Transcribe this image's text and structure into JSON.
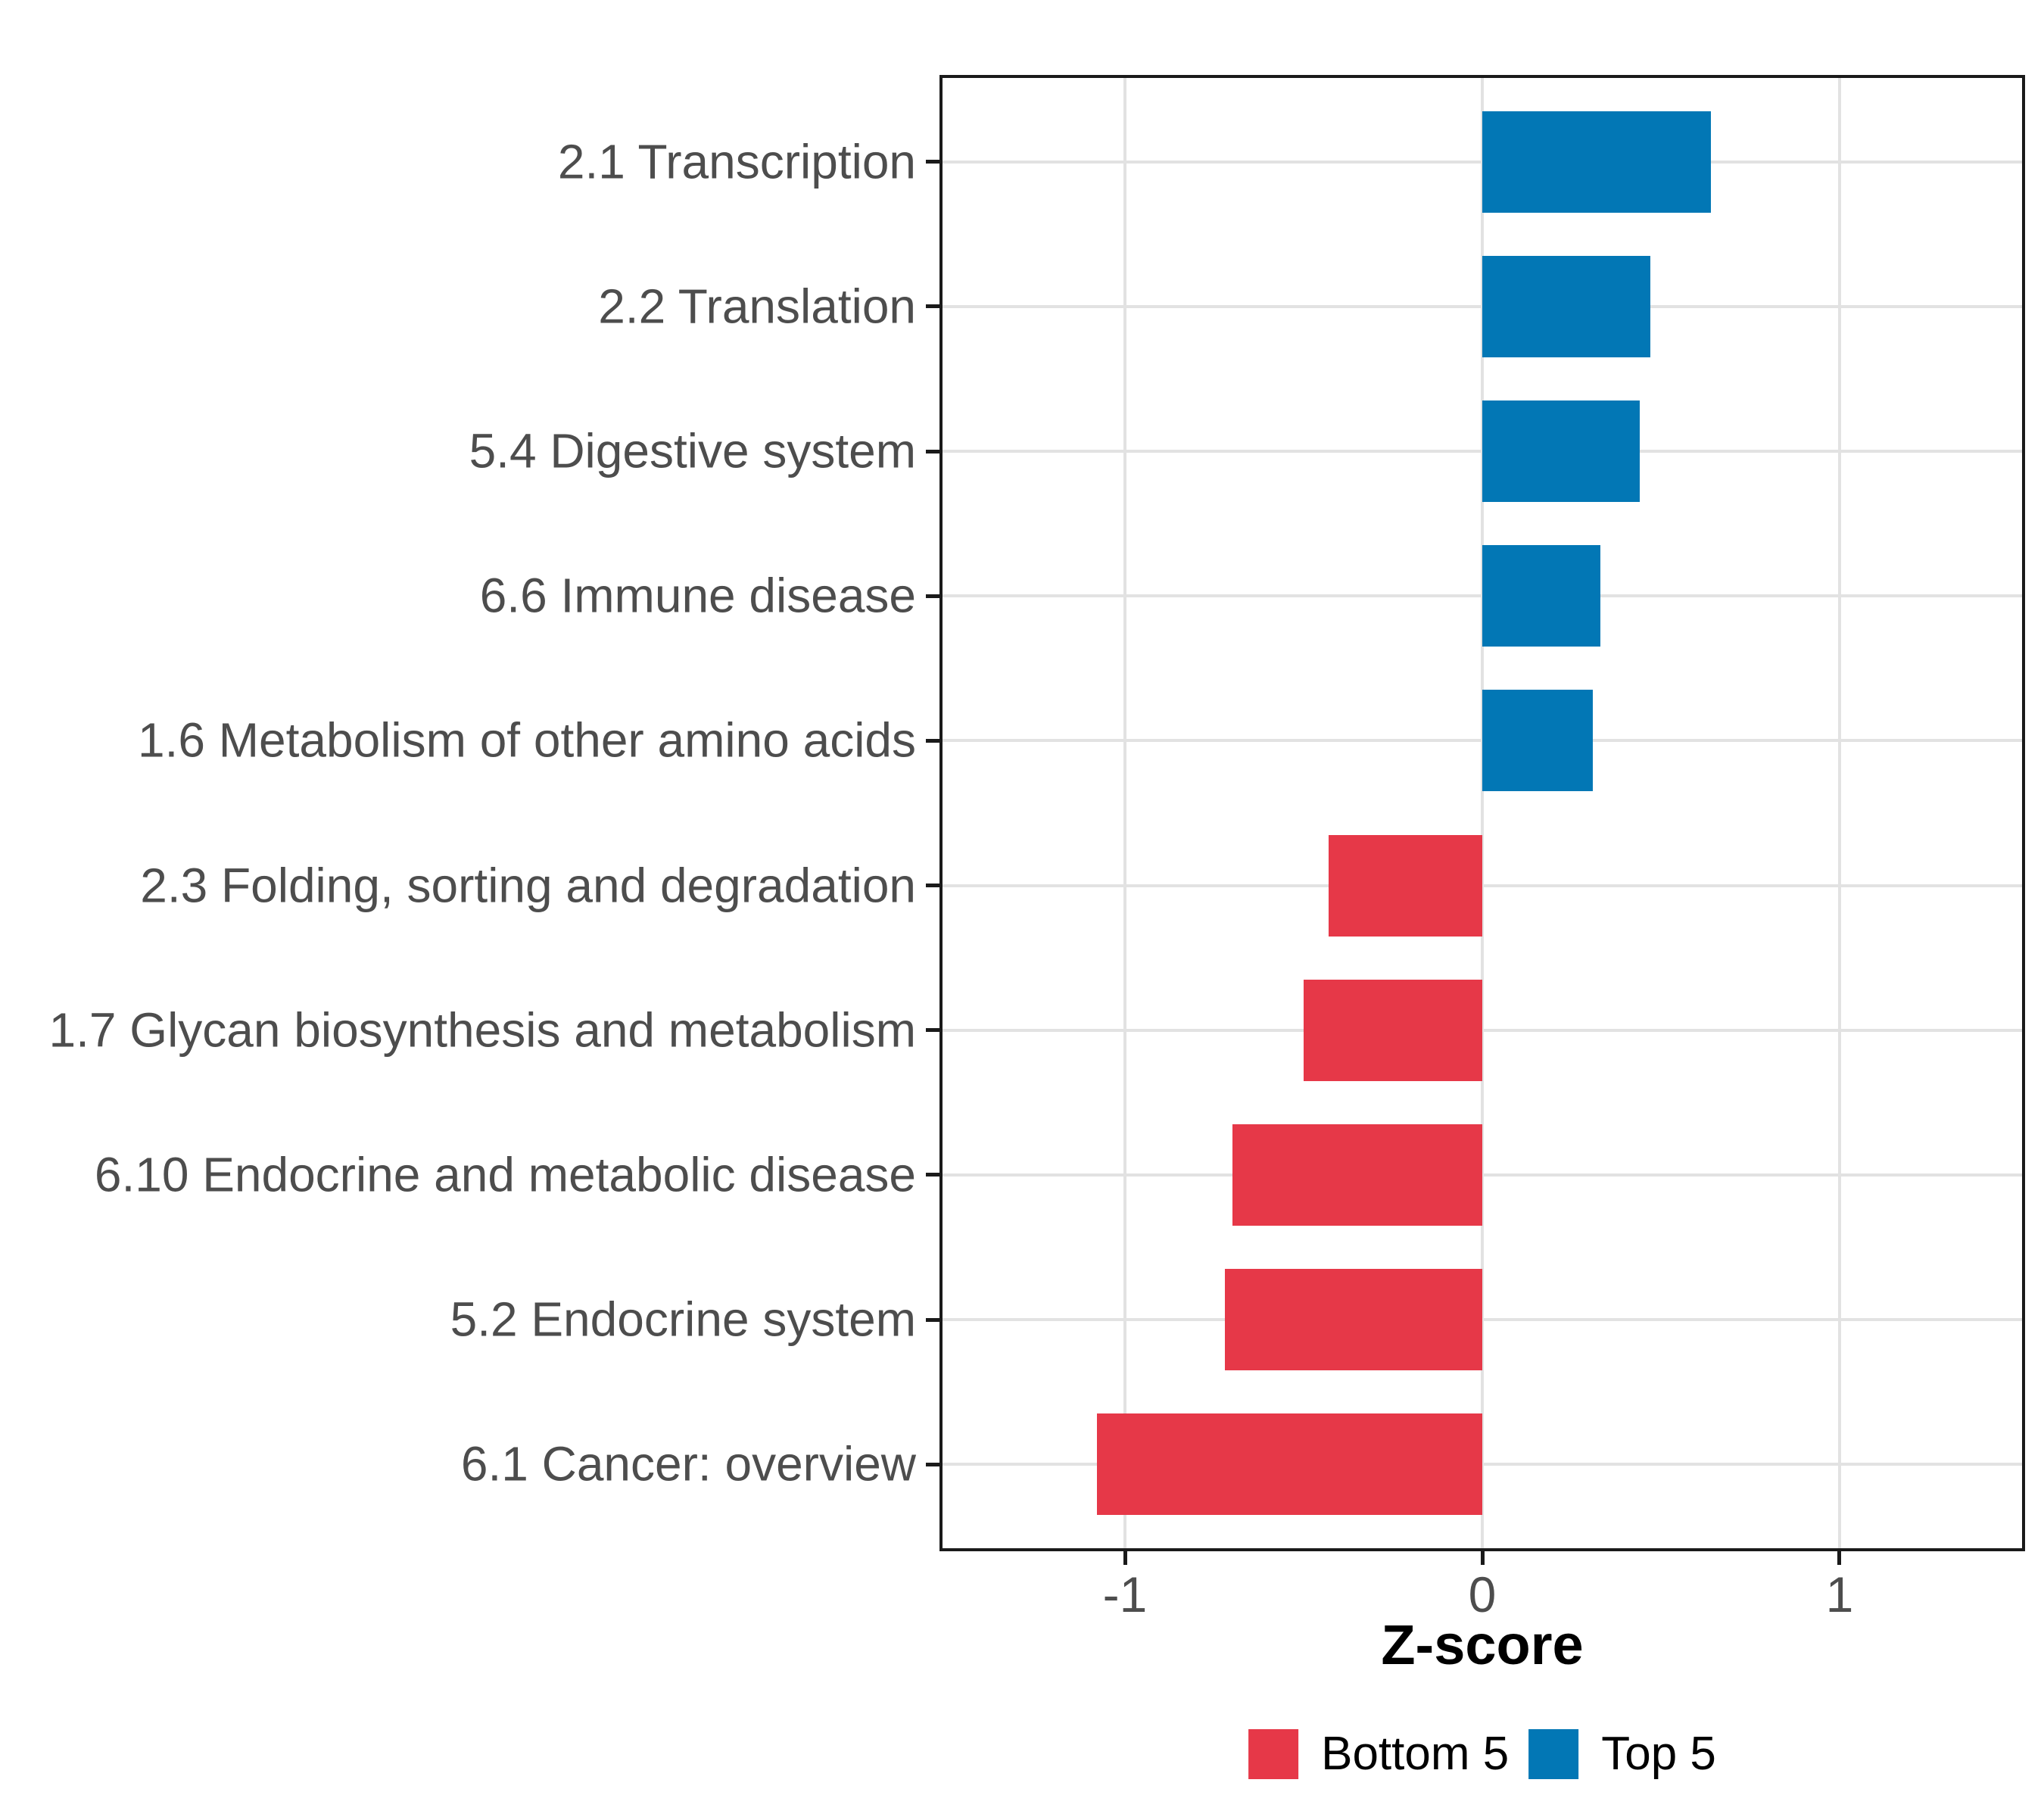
{
  "chart_data": {
    "type": "bar",
    "orientation": "horizontal",
    "title": "",
    "xlabel": "Z-score",
    "ylabel": "",
    "categories": [
      "2.1 Transcription",
      "2.2 Translation",
      "5.4 Digestive system",
      "6.6 Immune disease",
      "1.6 Metabolism of other amino acids",
      "2.3 Folding, sorting and degradation",
      "1.7 Glycan biosynthesis and metabolism",
      "6.10 Endocrine and metabolic disease",
      "5.2 Endocrine system",
      "6.1 Cancer: overview"
    ],
    "values": [
      0.64,
      0.47,
      0.44,
      0.33,
      0.31,
      -0.43,
      -0.5,
      -0.7,
      -0.72,
      -1.08
    ],
    "groups": [
      "Top 5",
      "Top 5",
      "Top 5",
      "Top 5",
      "Top 5",
      "Bottom 5",
      "Bottom 5",
      "Bottom 5",
      "Bottom 5",
      "Bottom 5"
    ],
    "xlim": [
      -1.52,
      1.52
    ],
    "x_ticks": [
      -1,
      0,
      1
    ],
    "x_tick_labels": [
      "-1",
      "0",
      "1"
    ],
    "grid": "major-only",
    "panel_border": true,
    "legend": {
      "position": "bottom",
      "entries": [
        {
          "label": "Bottom 5",
          "color": "#E63848"
        },
        {
          "label": "Top 5",
          "color": "#0277B5"
        }
      ]
    },
    "colors": {
      "positive_bar": "#0277B5",
      "negative_bar": "#E63848",
      "gridline": "#E2E2E2",
      "axis_text": "#4D4D4D",
      "axis_line": "#1A1A1A"
    }
  }
}
